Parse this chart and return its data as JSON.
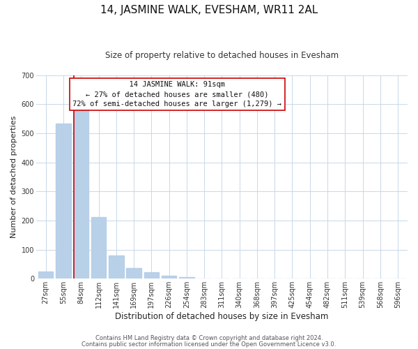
{
  "title": "14, JASMINE WALK, EVESHAM, WR11 2AL",
  "subtitle": "Size of property relative to detached houses in Evesham",
  "xlabel": "Distribution of detached houses by size in Evesham",
  "ylabel": "Number of detached properties",
  "bar_labels": [
    "27sqm",
    "55sqm",
    "84sqm",
    "112sqm",
    "141sqm",
    "169sqm",
    "197sqm",
    "226sqm",
    "254sqm",
    "283sqm",
    "311sqm",
    "340sqm",
    "368sqm",
    "397sqm",
    "425sqm",
    "454sqm",
    "482sqm",
    "511sqm",
    "539sqm",
    "568sqm",
    "596sqm"
  ],
  "bar_values": [
    25,
    533,
    590,
    213,
    80,
    36,
    22,
    10,
    5,
    0,
    0,
    0,
    0,
    0,
    0,
    0,
    0,
    0,
    0,
    0,
    0
  ],
  "bar_color": "#b8d0e8",
  "vline_color": "#cc0000",
  "vline_bar_index": 2,
  "annotation_title": "14 JASMINE WALK: 91sqm",
  "annotation_line1": "← 27% of detached houses are smaller (480)",
  "annotation_line2": "72% of semi-detached houses are larger (1,279) →",
  "annotation_box_facecolor": "#ffffff",
  "annotation_box_edgecolor": "#cc0000",
  "ylim": [
    0,
    700
  ],
  "yticks": [
    0,
    100,
    200,
    300,
    400,
    500,
    600,
    700
  ],
  "footer_line1": "Contains HM Land Registry data © Crown copyright and database right 2024.",
  "footer_line2": "Contains public sector information licensed under the Open Government Licence v3.0.",
  "background_color": "#ffffff",
  "grid_color": "#c8d8e8",
  "title_fontsize": 11,
  "subtitle_fontsize": 8.5,
  "xlabel_fontsize": 8.5,
  "ylabel_fontsize": 8,
  "tick_fontsize": 7,
  "annotation_fontsize": 7.5,
  "footer_fontsize": 6
}
